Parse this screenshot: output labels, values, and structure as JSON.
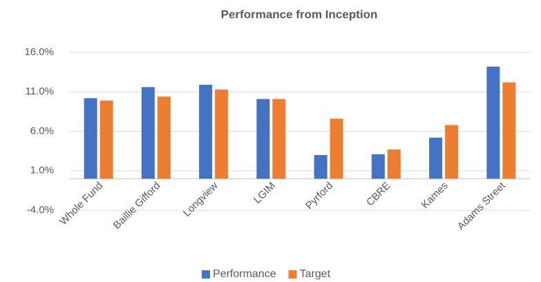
{
  "chart_data": {
    "type": "bar",
    "title": "Performance from Inception",
    "categories": [
      "Whole Fund",
      "Baillie Gifford",
      "Longview",
      "LGIM",
      "Pyrford",
      "CBRE",
      "Kames",
      "Adams Street"
    ],
    "series": [
      {
        "name": "Performance",
        "color": "#4472c4",
        "values": [
          10.2,
          11.6,
          11.9,
          10.1,
          3.0,
          3.1,
          5.2,
          14.2
        ]
      },
      {
        "name": "Target",
        "color": "#ed7d31",
        "values": [
          9.9,
          10.4,
          11.3,
          10.1,
          7.6,
          3.7,
          6.8,
          12.2
        ]
      }
    ],
    "ylim": [
      -4,
      16
    ],
    "yticks": [
      {
        "value": -4,
        "label": "-4.0%"
      },
      {
        "value": 1,
        "label": "1.0%"
      },
      {
        "value": 6,
        "label": "6.0%"
      },
      {
        "value": 11,
        "label": "11.0%"
      },
      {
        "value": 16,
        "label": "16.0%"
      }
    ],
    "grid": true,
    "legend": "bottom"
  }
}
